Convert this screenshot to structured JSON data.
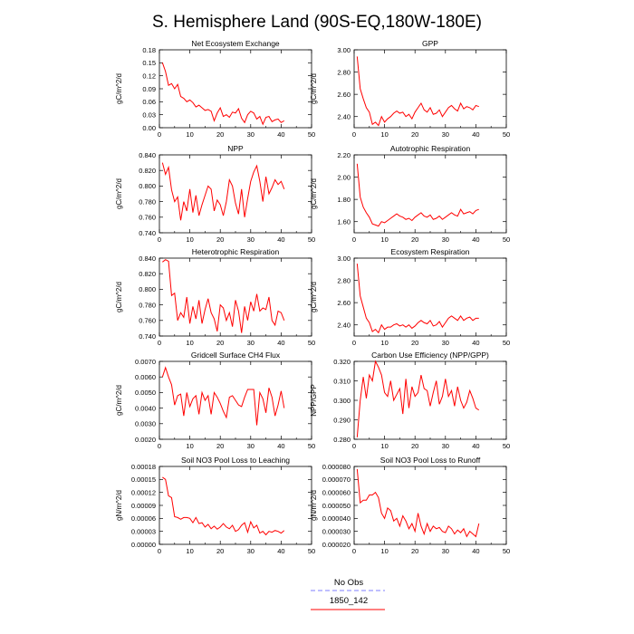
{
  "title": "S. Hemisphere Land (90S-EQ,180W-180E)",
  "legend": {
    "items": [
      {
        "label": "No Obs",
        "color": "#7f7fff",
        "style": "dashed"
      },
      {
        "label": "1850_142",
        "color": "#ff0000",
        "style": "solid"
      }
    ]
  },
  "chart_data": [
    {
      "type": "line",
      "title": "Net Ecosystem Exchange",
      "ylabel": "gC/m^2/d",
      "xlim": [
        0,
        50
      ],
      "ylim": [
        0,
        0.18
      ],
      "xticks": [
        0,
        10,
        20,
        30,
        40,
        50
      ],
      "yticks": [
        "0.00",
        "0.03",
        "0.06",
        "0.09",
        "0.12",
        "0.15",
        "0.18"
      ],
      "series": [
        {
          "values": [
            0.15,
            0.13,
            0.098,
            0.102,
            0.09,
            0.1,
            0.072,
            0.068,
            0.06,
            0.064,
            0.058,
            0.048,
            0.052,
            0.046,
            0.04,
            0.042,
            0.038,
            0.016,
            0.034,
            0.046,
            0.026,
            0.03,
            0.024,
            0.036,
            0.034,
            0.044,
            0.022,
            0.012,
            0.03,
            0.038,
            0.034,
            0.02,
            0.026,
            0.008,
            0.024,
            0.026,
            0.014,
            0.018,
            0.02,
            0.012,
            0.016
          ]
        }
      ]
    },
    {
      "type": "line",
      "title": "GPP",
      "ylabel": "gC/m^2/d",
      "xlim": [
        0,
        50
      ],
      "ylim": [
        2.3,
        3.0
      ],
      "xticks": [
        0,
        10,
        20,
        30,
        40,
        50
      ],
      "yticks": [
        "2.40",
        "2.60",
        "2.80",
        "3.00"
      ],
      "series": [
        {
          "values": [
            2.94,
            2.65,
            2.56,
            2.48,
            2.44,
            2.33,
            2.35,
            2.32,
            2.4,
            2.35,
            2.38,
            2.4,
            2.43,
            2.45,
            2.43,
            2.44,
            2.4,
            2.42,
            2.38,
            2.44,
            2.48,
            2.52,
            2.46,
            2.44,
            2.48,
            2.42,
            2.43,
            2.46,
            2.4,
            2.44,
            2.48,
            2.5,
            2.47,
            2.45,
            2.52,
            2.47,
            2.49,
            2.48,
            2.46,
            2.5,
            2.49
          ]
        }
      ]
    },
    {
      "type": "line",
      "title": "NPP",
      "ylabel": "gC/m^2/d",
      "xlim": [
        0,
        50
      ],
      "ylim": [
        0.74,
        0.84
      ],
      "xticks": [
        0,
        10,
        20,
        30,
        40,
        50
      ],
      "yticks": [
        "0.740",
        "0.760",
        "0.780",
        "0.800",
        "0.820",
        "0.840"
      ],
      "series": [
        {
          "values": [
            0.83,
            0.815,
            0.824,
            0.795,
            0.78,
            0.786,
            0.756,
            0.78,
            0.768,
            0.796,
            0.766,
            0.788,
            0.762,
            0.776,
            0.788,
            0.8,
            0.796,
            0.768,
            0.782,
            0.776,
            0.762,
            0.78,
            0.808,
            0.8,
            0.778,
            0.764,
            0.796,
            0.76,
            0.784,
            0.806,
            0.818,
            0.826,
            0.806,
            0.78,
            0.812,
            0.79,
            0.798,
            0.808,
            0.802,
            0.806,
            0.796
          ]
        }
      ]
    },
    {
      "type": "line",
      "title": "Autotrophic Respiration",
      "ylabel": "gC/m^2/d",
      "xlim": [
        0,
        50
      ],
      "ylim": [
        1.5,
        2.2
      ],
      "xticks": [
        0,
        10,
        20,
        30,
        40,
        50
      ],
      "yticks": [
        "1.60",
        "1.80",
        "2.00",
        "2.20"
      ],
      "series": [
        {
          "values": [
            2.12,
            1.82,
            1.73,
            1.68,
            1.64,
            1.58,
            1.57,
            1.56,
            1.6,
            1.59,
            1.61,
            1.63,
            1.65,
            1.67,
            1.65,
            1.64,
            1.62,
            1.63,
            1.61,
            1.64,
            1.66,
            1.68,
            1.65,
            1.64,
            1.66,
            1.62,
            1.63,
            1.65,
            1.62,
            1.64,
            1.66,
            1.68,
            1.66,
            1.65,
            1.71,
            1.67,
            1.68,
            1.69,
            1.67,
            1.7,
            1.71
          ]
        }
      ]
    },
    {
      "type": "line",
      "title": "Heterotrophic Respiration",
      "ylabel": "gC/m^2/d",
      "xlim": [
        0,
        50
      ],
      "ylim": [
        0.74,
        0.84
      ],
      "xticks": [
        0,
        10,
        20,
        30,
        40,
        50
      ],
      "yticks": [
        "0.740",
        "0.760",
        "0.780",
        "0.800",
        "0.820",
        "0.840"
      ],
      "series": [
        {
          "values": [
            0.835,
            0.838,
            0.836,
            0.792,
            0.795,
            0.76,
            0.77,
            0.764,
            0.79,
            0.756,
            0.778,
            0.762,
            0.786,
            0.756,
            0.774,
            0.788,
            0.77,
            0.762,
            0.746,
            0.78,
            0.776,
            0.76,
            0.77,
            0.752,
            0.786,
            0.772,
            0.744,
            0.778,
            0.76,
            0.784,
            0.772,
            0.794,
            0.772,
            0.776,
            0.774,
            0.79,
            0.76,
            0.754,
            0.772,
            0.77,
            0.76
          ]
        }
      ]
    },
    {
      "type": "line",
      "title": "Ecosystem Respiration",
      "ylabel": "gC/m^2/d",
      "xlim": [
        0,
        50
      ],
      "ylim": [
        2.3,
        3.0
      ],
      "xticks": [
        0,
        10,
        20,
        30,
        40,
        50
      ],
      "yticks": [
        "2.40",
        "2.60",
        "2.80",
        "3.00"
      ],
      "series": [
        {
          "values": [
            2.95,
            2.66,
            2.56,
            2.46,
            2.42,
            2.34,
            2.36,
            2.33,
            2.4,
            2.36,
            2.38,
            2.38,
            2.4,
            2.41,
            2.39,
            2.4,
            2.38,
            2.4,
            2.37,
            2.39,
            2.42,
            2.44,
            2.42,
            2.41,
            2.44,
            2.39,
            2.4,
            2.43,
            2.38,
            2.42,
            2.46,
            2.48,
            2.46,
            2.44,
            2.48,
            2.44,
            2.46,
            2.47,
            2.44,
            2.46,
            2.46
          ]
        }
      ]
    },
    {
      "type": "line",
      "title": "Gridcell Surface CH4 Flux",
      "ylabel": "gC/m^2/d",
      "xlim": [
        0,
        50
      ],
      "ylim": [
        0.002,
        0.007
      ],
      "xticks": [
        0,
        10,
        20,
        30,
        40,
        50
      ],
      "yticks": [
        "0.0020",
        "0.0030",
        "0.0040",
        "0.0050",
        "0.0060",
        "0.0070"
      ],
      "series": [
        {
          "values": [
            0.006,
            0.0066,
            0.006,
            0.0055,
            0.0042,
            0.0048,
            0.0049,
            0.0035,
            0.005,
            0.0041,
            0.0046,
            0.0048,
            0.0036,
            0.005,
            0.0045,
            0.0048,
            0.0036,
            0.005,
            0.0047,
            0.0043,
            0.0038,
            0.0034,
            0.0047,
            0.0048,
            0.0045,
            0.0042,
            0.0041,
            0.0047,
            0.0052,
            0.0052,
            0.0052,
            0.0029,
            0.005,
            0.0046,
            0.0037,
            0.0053,
            0.0047,
            0.0035,
            0.0042,
            0.0051,
            0.004
          ]
        }
      ]
    },
    {
      "type": "line",
      "title": "Carbon Use Efficiency (NPP/GPP)",
      "ylabel": "NPP/GPP",
      "xlim": [
        0,
        50
      ],
      "ylim": [
        0.28,
        0.32
      ],
      "xticks": [
        0,
        10,
        20,
        30,
        40,
        50
      ],
      "yticks": [
        "0.280",
        "0.290",
        "0.300",
        "0.310",
        "0.320"
      ],
      "series": [
        {
          "values": [
            0.281,
            0.3,
            0.312,
            0.301,
            0.313,
            0.31,
            0.32,
            0.317,
            0.313,
            0.304,
            0.302,
            0.31,
            0.3,
            0.303,
            0.306,
            0.293,
            0.311,
            0.296,
            0.307,
            0.302,
            0.304,
            0.313,
            0.306,
            0.305,
            0.297,
            0.304,
            0.31,
            0.298,
            0.302,
            0.311,
            0.302,
            0.305,
            0.297,
            0.307,
            0.3,
            0.296,
            0.299,
            0.305,
            0.301,
            0.296,
            0.295
          ]
        }
      ]
    },
    {
      "type": "line",
      "title": "Soil NO3 Pool Loss to Leaching",
      "ylabel": "gN/m^2/d",
      "xlim": [
        0,
        50
      ],
      "ylim": [
        0,
        0.00018
      ],
      "xticks": [
        0,
        10,
        20,
        30,
        40,
        50
      ],
      "yticks": [
        "0.00000",
        "0.00003",
        "0.00006",
        "0.00009",
        "0.00012",
        "0.00015",
        "0.00018"
      ],
      "series": [
        {
          "values": [
            0.000155,
            0.00015,
            0.000112,
            0.000108,
            6.4e-05,
            6.2e-05,
            5.8e-05,
            6.2e-05,
            6.2e-05,
            6e-05,
            5e-05,
            6.2e-05,
            4.8e-05,
            5e-05,
            4e-05,
            4.6e-05,
            3.6e-05,
            4.2e-05,
            3.5e-05,
            4e-05,
            4.8e-05,
            4e-05,
            3.6e-05,
            4.4e-05,
            3e-05,
            3.4e-05,
            4.4e-05,
            5e-05,
            2.8e-05,
            5.2e-05,
            3.8e-05,
            4.4e-05,
            2.6e-05,
            3e-05,
            2.2e-05,
            3e-05,
            2.8e-05,
            3.2e-05,
            3e-05,
            2.6e-05,
            3.2e-05
          ]
        }
      ]
    },
    {
      "type": "line",
      "title": "Soil NO3 Pool Loss to Runoff",
      "ylabel": "gN/m^2/d",
      "xlim": [
        0,
        50
      ],
      "ylim": [
        2e-05,
        8e-05
      ],
      "xticks": [
        0,
        10,
        20,
        30,
        40,
        50
      ],
      "yticks": [
        "0.000020",
        "0.000030",
        "0.000040",
        "0.000050",
        "0.000060",
        "0.000070",
        "0.000080"
      ],
      "series": [
        {
          "values": [
            7.8e-05,
            5.2e-05,
            5.4e-05,
            5.4e-05,
            5.8e-05,
            5.8e-05,
            6e-05,
            5.6e-05,
            4.4e-05,
            4e-05,
            4.8e-05,
            4.6e-05,
            3.8e-05,
            4e-05,
            3.4e-05,
            4.2e-05,
            3.8e-05,
            3.2e-05,
            3.6e-05,
            3e-05,
            4.4e-05,
            3.4e-05,
            2.8e-05,
            3.6e-05,
            3e-05,
            3.4e-05,
            3.2e-05,
            3.3e-05,
            3e-05,
            2.9e-05,
            3.4e-05,
            3.2e-05,
            2.8e-05,
            3.1e-05,
            2.9e-05,
            3.2e-05,
            2.6e-05,
            3e-05,
            2.8e-05,
            2.6e-05,
            3.6e-05
          ]
        }
      ]
    }
  ]
}
